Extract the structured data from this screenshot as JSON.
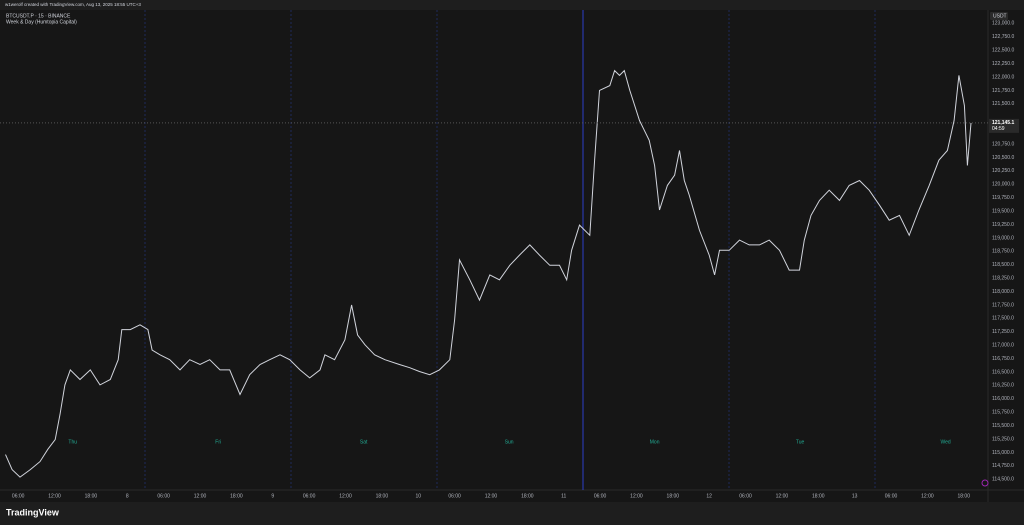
{
  "header": {
    "text": "w1werolf created with TradingView.com, Aug 13, 2025 18:55 UTC+3"
  },
  "footer": {
    "brand": "TradingView"
  },
  "chart_data": {
    "type": "line",
    "title": "BTCUSDT.P · 15 · BINANCE",
    "subtitle": "Week & Day (Humtopia Capital)",
    "currency": "USDT",
    "countdown": "04:59",
    "current_price": {
      "value": 121145.1,
      "label": "121,145.1"
    },
    "color": "#d1d4dc",
    "label_color": "#22ab94",
    "grid": false,
    "day_labels": [
      "Thu",
      "Fri",
      "Sat",
      "Sun",
      "Mon",
      "Tue",
      "Wed"
    ],
    "x": [
      3.9,
      5.0,
      6.3,
      8.0,
      9.6,
      10.9,
      12.1,
      12.9,
      13.7,
      14.6,
      16.2,
      17.9,
      19.5,
      21.2,
      22.5,
      23.1,
      24.5,
      26.1,
      27.4,
      28.1,
      29.4,
      31.0,
      32.7,
      34.3,
      36.0,
      37.6,
      39.3,
      40.9,
      42.6,
      44.2,
      45.9,
      47.5,
      49.2,
      50.8,
      52.5,
      54.1,
      55.8,
      56.6,
      58.2,
      59.9,
      61.0,
      62.0,
      63.2,
      64.8,
      66.5,
      68.9,
      70.6,
      72.2,
      73.9,
      75.5,
      77.2,
      78.0,
      78.8,
      80.5,
      82.1,
      83.8,
      85.4,
      87.1,
      88.7,
      90.4,
      92.0,
      93.7,
      95.3,
      96.5,
      97.3,
      98.6,
      100.3,
      101.1,
      101.9,
      103.6,
      104.4,
      105.2,
      106.0,
      106.9,
      108.5,
      110.1,
      111.0,
      111.8,
      113.1,
      114.3,
      115.1,
      115.9,
      116.7,
      118.4,
      120.0,
      120.9,
      121.7,
      123.3,
      125.0,
      126.6,
      128.3,
      129.9,
      131.6,
      133.2,
      134.9,
      135.7,
      136.8,
      138.2,
      139.8,
      141.5,
      143.1,
      144.8,
      146.4,
      148.1,
      149.7,
      151.4,
      153.0,
      154.6,
      156.3,
      157.9,
      159.3,
      160.4,
      161.2,
      162.1,
      162.6,
      163.2
    ],
    "values": [
      114960,
      114680,
      114540,
      114680,
      114830,
      115060,
      115240,
      115710,
      116260,
      116540,
      116360,
      116540,
      116260,
      116360,
      116730,
      117290,
      117290,
      117380,
      117290,
      116910,
      116820,
      116730,
      116540,
      116730,
      116640,
      116730,
      116540,
      116540,
      116080,
      116450,
      116640,
      116730,
      116820,
      116730,
      116540,
      116390,
      116540,
      116820,
      116730,
      117100,
      117750,
      117190,
      117010,
      116820,
      116730,
      116640,
      116580,
      116510,
      116450,
      116540,
      116730,
      117470,
      118590,
      118220,
      117840,
      118310,
      118220,
      118490,
      118680,
      118870,
      118680,
      118490,
      118490,
      118220,
      118770,
      119240,
      119050,
      120450,
      121750,
      121840,
      122120,
      122030,
      122120,
      121750,
      121190,
      120820,
      120350,
      119520,
      119980,
      120170,
      120630,
      120070,
      119800,
      119140,
      118680,
      118310,
      118770,
      118770,
      118960,
      118870,
      118870,
      118960,
      118770,
      118400,
      118400,
      118960,
      119420,
      119700,
      119890,
      119700,
      119980,
      120070,
      119890,
      119610,
      119330,
      119420,
      119050,
      119520,
      119980,
      120450,
      120630,
      121190,
      122030,
      121470,
      120350,
      121145.1
    ],
    "xlim": [
      3,
      166
    ],
    "ylim": [
      114300,
      123250
    ],
    "xticks": [
      {
        "value": 6,
        "label": "06:00"
      },
      {
        "value": 12,
        "label": "12:00"
      },
      {
        "value": 18,
        "label": "18:00"
      },
      {
        "value": 24,
        "label": "8"
      },
      {
        "value": 30,
        "label": "06:00"
      },
      {
        "value": 36,
        "label": "12:00"
      },
      {
        "value": 42,
        "label": "18:00"
      },
      {
        "value": 48,
        "label": "9"
      },
      {
        "value": 54,
        "label": "06:00"
      },
      {
        "value": 60,
        "label": "12:00"
      },
      {
        "value": 66,
        "label": "18:00"
      },
      {
        "value": 72,
        "label": "10"
      },
      {
        "value": 78,
        "label": "06:00"
      },
      {
        "value": 84,
        "label": "12:00"
      },
      {
        "value": 90,
        "label": "18:00"
      },
      {
        "value": 96,
        "label": "11"
      },
      {
        "value": 102,
        "label": "06:00"
      },
      {
        "value": 108,
        "label": "12:00"
      },
      {
        "value": 114,
        "label": "18:00"
      },
      {
        "value": 120,
        "label": "12"
      },
      {
        "value": 126,
        "label": "06:00"
      },
      {
        "value": 132,
        "label": "12:00"
      },
      {
        "value": 138,
        "label": "18:00"
      },
      {
        "value": 144,
        "label": "13"
      },
      {
        "value": 150,
        "label": "06:00"
      },
      {
        "value": 156,
        "label": "12:00"
      },
      {
        "value": 162,
        "label": "18:00"
      }
    ],
    "yticks": [
      {
        "value": 114500,
        "label": "114,500.0"
      },
      {
        "value": 114750,
        "label": "114,750.0"
      },
      {
        "value": 115000,
        "label": "115,000.0"
      },
      {
        "value": 115250,
        "label": "115,250.0"
      },
      {
        "value": 115500,
        "label": "115,500.0"
      },
      {
        "value": 115750,
        "label": "115,750.0"
      },
      {
        "value": 116000,
        "label": "116,000.0"
      },
      {
        "value": 116250,
        "label": "116,250.0"
      },
      {
        "value": 116500,
        "label": "116,500.0"
      },
      {
        "value": 116750,
        "label": "116,750.0"
      },
      {
        "value": 117000,
        "label": "117,000.0"
      },
      {
        "value": 117250,
        "label": "117,250.0"
      },
      {
        "value": 117500,
        "label": "117,500.0"
      },
      {
        "value": 117750,
        "label": "117,750.0"
      },
      {
        "value": 118000,
        "label": "118,000.0"
      },
      {
        "value": 118250,
        "label": "118,250.0"
      },
      {
        "value": 118500,
        "label": "118,500.0"
      },
      {
        "value": 118750,
        "label": "118,750.0"
      },
      {
        "value": 119000,
        "label": "119,000.0"
      },
      {
        "value": 119250,
        "label": "119,250.0"
      },
      {
        "value": 119500,
        "label": "119,500.0"
      },
      {
        "value": 119750,
        "label": "119,750.0"
      },
      {
        "value": 120000,
        "label": "120,000.0"
      },
      {
        "value": 120250,
        "label": "120,250.0"
      },
      {
        "value": 120500,
        "label": "120,500.0"
      },
      {
        "value": 120750,
        "label": "120,750.0"
      },
      {
        "value": 121000,
        "label": "121,000.0"
      },
      {
        "value": 121500,
        "label": "121,500.0"
      },
      {
        "value": 121750,
        "label": "121,750.0"
      },
      {
        "value": 122000,
        "label": "122,000.0"
      },
      {
        "value": 122250,
        "label": "122,250.0"
      },
      {
        "value": 122500,
        "label": "122,500.0"
      },
      {
        "value": 122750,
        "label": "122,750.0"
      },
      {
        "value": 123000,
        "label": "123,000.0"
      }
    ]
  }
}
